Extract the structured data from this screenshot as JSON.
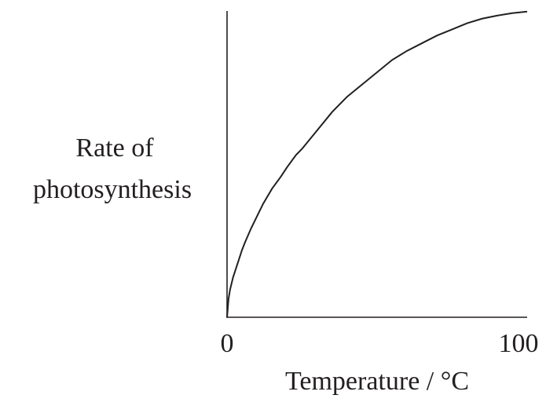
{
  "chart_data": {
    "type": "line",
    "title": "",
    "xlabel": "Temperature / °C",
    "ylabel_lines": [
      "Rate of",
      "photosynthesis"
    ],
    "x_ticks": [
      "0",
      "100"
    ],
    "xlim": [
      0,
      100
    ],
    "ylim": [
      0,
      1
    ],
    "grid": false,
    "legend": "none",
    "series": [
      {
        "x": [
          0,
          0.5,
          1,
          2,
          3,
          4,
          5,
          6,
          8,
          10,
          12,
          15,
          18,
          20,
          23,
          25,
          30,
          35,
          40,
          45,
          50,
          55,
          60,
          65,
          70,
          75,
          80,
          85,
          90,
          95,
          100
        ],
        "y": [
          0,
          0.06,
          0.09,
          0.13,
          0.16,
          0.19,
          0.22,
          0.245,
          0.29,
          0.33,
          0.37,
          0.42,
          0.46,
          0.49,
          0.53,
          0.55,
          0.61,
          0.67,
          0.72,
          0.76,
          0.8,
          0.84,
          0.87,
          0.895,
          0.92,
          0.94,
          0.96,
          0.975,
          0.985,
          0.993,
          0.998
        ]
      }
    ],
    "colors": {
      "line": "#231f20",
      "axis": "#231f20"
    }
  }
}
